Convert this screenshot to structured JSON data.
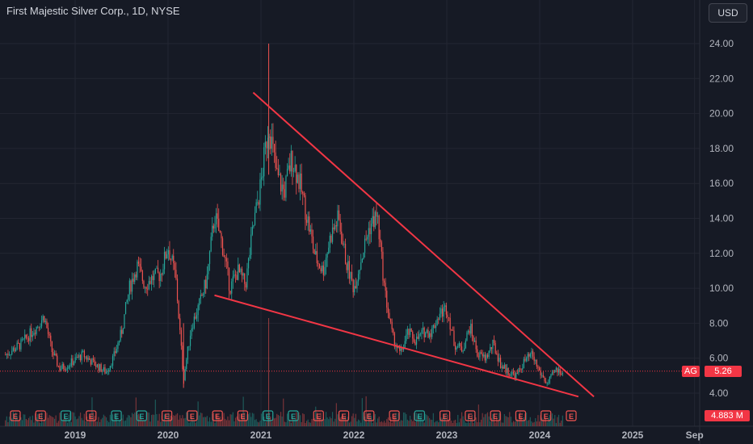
{
  "header": {
    "title": "First Majestic Silver Corp., 1D, NYSE",
    "currency": "USD"
  },
  "price_tag": {
    "symbol": "AG",
    "value": "5.26",
    "color": "#f23645"
  },
  "volume_tag": {
    "value": "4.883 M",
    "color": "#f23645"
  },
  "colors": {
    "background": "#161a25",
    "up": "#26a69a",
    "down": "#ef5350",
    "trendline": "#f23645",
    "grid": "#232632"
  },
  "earnings_marker": {
    "glyph": "E",
    "count": 23
  },
  "chart_data": {
    "type": "candlestick",
    "title": "First Majestic Silver Corp., 1D, NYSE",
    "y_ticks": [
      "24.00",
      "22.00",
      "20.00",
      "18.00",
      "16.00",
      "14.00",
      "12.00",
      "10.00",
      "8.00",
      "6.00",
      "4.00"
    ],
    "x_ticks": [
      "2019",
      "2020",
      "2021",
      "2022",
      "2023",
      "2024",
      "2025",
      "Sep"
    ],
    "ylim": [
      3.0,
      25.0
    ],
    "x_range": [
      "2018-04",
      "2025-09"
    ],
    "last_price": 5.26,
    "price_series": [
      {
        "t": "2018-04",
        "v": 6.2
      },
      {
        "t": "2018-06",
        "v": 6.8
      },
      {
        "t": "2018-08",
        "v": 7.8
      },
      {
        "t": "2018-09",
        "v": 8.4
      },
      {
        "t": "2018-10",
        "v": 6.4
      },
      {
        "t": "2018-11",
        "v": 5.4
      },
      {
        "t": "2018-12",
        "v": 5.6
      },
      {
        "t": "2019-02",
        "v": 6.2
      },
      {
        "t": "2019-04",
        "v": 5.5
      },
      {
        "t": "2019-05",
        "v": 5.2
      },
      {
        "t": "2019-06",
        "v": 6.1
      },
      {
        "t": "2019-07",
        "v": 7.5
      },
      {
        "t": "2019-08",
        "v": 10.0
      },
      {
        "t": "2019-09",
        "v": 11.3
      },
      {
        "t": "2019-10",
        "v": 10.2
      },
      {
        "t": "2019-11",
        "v": 10.6
      },
      {
        "t": "2019-12",
        "v": 10.8
      },
      {
        "t": "2020-01",
        "v": 12.4
      },
      {
        "t": "2020-02",
        "v": 10.6
      },
      {
        "t": "2020-03",
        "v": 4.8
      },
      {
        "t": "2020-04",
        "v": 7.8
      },
      {
        "t": "2020-05",
        "v": 9.0
      },
      {
        "t": "2020-06",
        "v": 10.5
      },
      {
        "t": "2020-07",
        "v": 14.2
      },
      {
        "t": "2020-08",
        "v": 12.5
      },
      {
        "t": "2020-09",
        "v": 10.0
      },
      {
        "t": "2020-10",
        "v": 11.0
      },
      {
        "t": "2020-11",
        "v": 10.2
      },
      {
        "t": "2020-12",
        "v": 13.5
      },
      {
        "t": "2021-01",
        "v": 16.0
      },
      {
        "t": "2021-02",
        "v": 19.5
      },
      {
        "t": "2021-03",
        "v": 16.5
      },
      {
        "t": "2021-04",
        "v": 15.5
      },
      {
        "t": "2021-05",
        "v": 17.5
      },
      {
        "t": "2021-06",
        "v": 16.0
      },
      {
        "t": "2021-07",
        "v": 14.0
      },
      {
        "t": "2021-08",
        "v": 11.8
      },
      {
        "t": "2021-09",
        "v": 11.0
      },
      {
        "t": "2021-10",
        "v": 13.0
      },
      {
        "t": "2021-11",
        "v": 14.0
      },
      {
        "t": "2021-12",
        "v": 11.5
      },
      {
        "t": "2022-01",
        "v": 10.0
      },
      {
        "t": "2022-02",
        "v": 11.8
      },
      {
        "t": "2022-03",
        "v": 13.5
      },
      {
        "t": "2022-04",
        "v": 14.2
      },
      {
        "t": "2022-05",
        "v": 9.8
      },
      {
        "t": "2022-06",
        "v": 7.2
      },
      {
        "t": "2022-07",
        "v": 6.2
      },
      {
        "t": "2022-08",
        "v": 7.5
      },
      {
        "t": "2022-09",
        "v": 7.0
      },
      {
        "t": "2022-10",
        "v": 7.5
      },
      {
        "t": "2022-11",
        "v": 7.5
      },
      {
        "t": "2022-12",
        "v": 8.5
      },
      {
        "t": "2023-01",
        "v": 8.9
      },
      {
        "t": "2023-02",
        "v": 6.8
      },
      {
        "t": "2023-03",
        "v": 6.5
      },
      {
        "t": "2023-04",
        "v": 7.8
      },
      {
        "t": "2023-05",
        "v": 6.2
      },
      {
        "t": "2023-06",
        "v": 6.0
      },
      {
        "t": "2023-07",
        "v": 6.8
      },
      {
        "t": "2023-08",
        "v": 5.6
      },
      {
        "t": "2023-09",
        "v": 5.2
      },
      {
        "t": "2023-10",
        "v": 5.0
      },
      {
        "t": "2023-11",
        "v": 5.8
      },
      {
        "t": "2023-12",
        "v": 6.2
      },
      {
        "t": "2024-01",
        "v": 5.2
      },
      {
        "t": "2024-02",
        "v": 4.5
      },
      {
        "t": "2024-03",
        "v": 5.3
      },
      {
        "t": "2024-04",
        "v": 5.26
      }
    ],
    "trendlines": [
      {
        "from": {
          "t": "2020-12",
          "v": 21.2
        },
        "to": {
          "t": "2024-08",
          "v": 3.8
        }
      },
      {
        "from": {
          "t": "2020-07",
          "v": 9.6
        },
        "to": {
          "t": "2024-06",
          "v": 3.8
        }
      }
    ]
  }
}
